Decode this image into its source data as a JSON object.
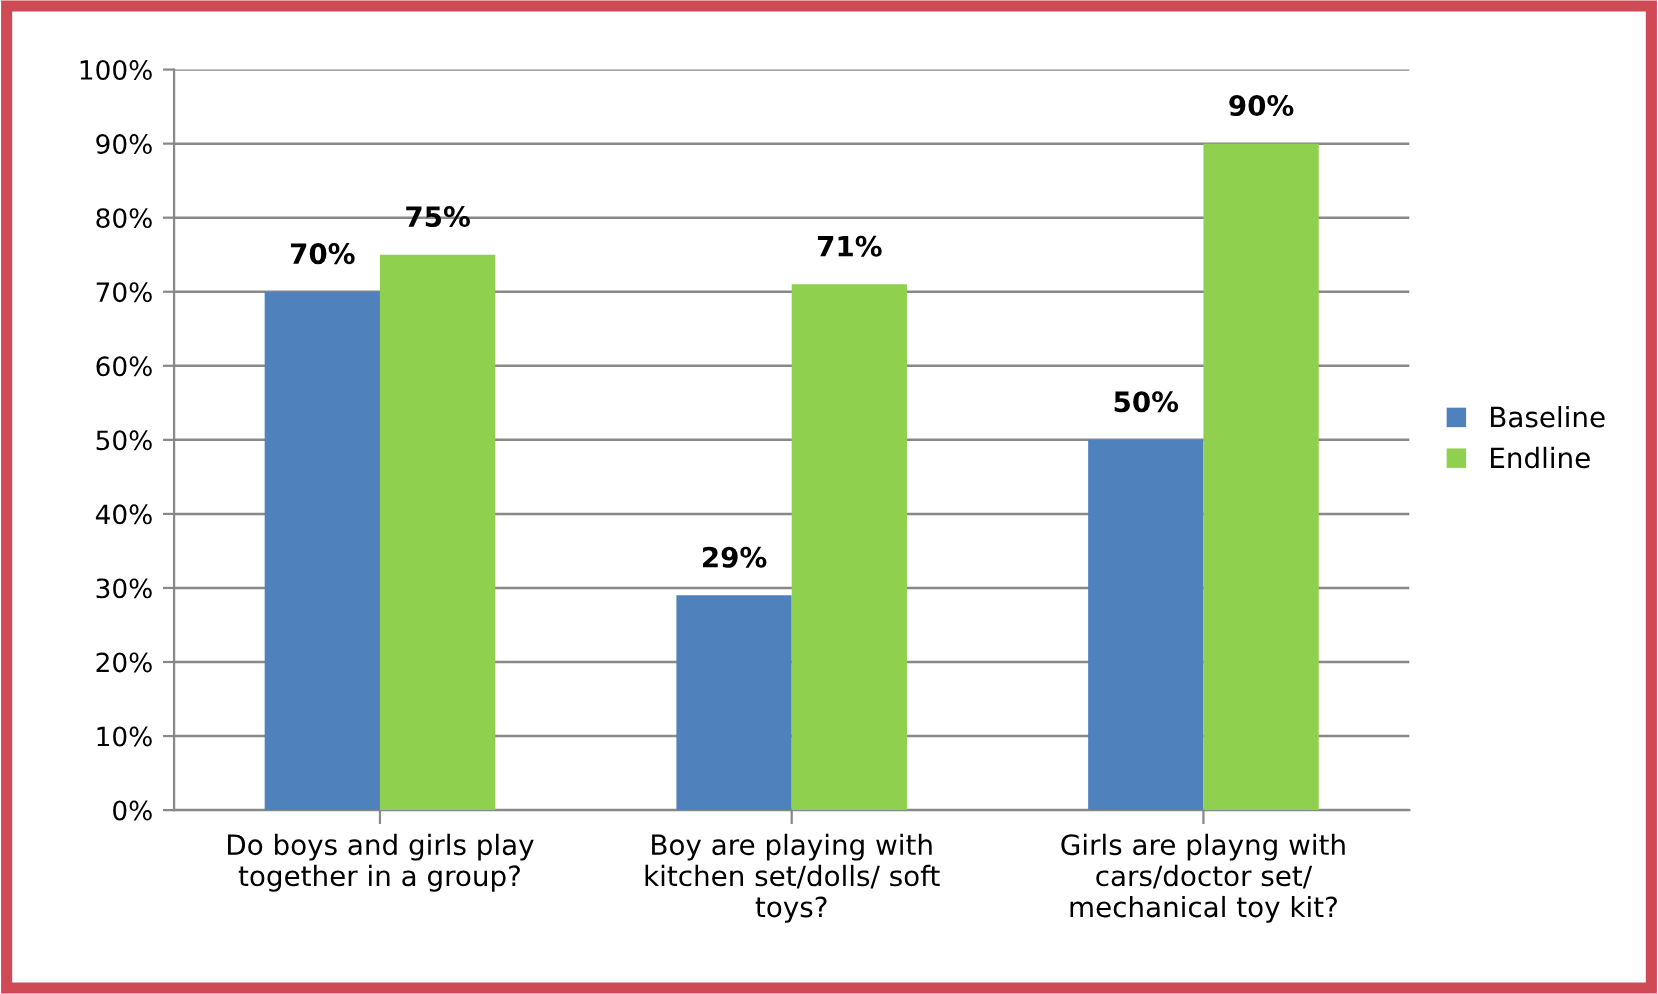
{
  "chart_data": {
    "type": "bar",
    "categories": [
      "Do boys and girls play\ntogether in a group?",
      "Boy are playing with\nkitchen set/dolls/ soft\ntoys?",
      "Girls are playng with\ncars/doctor set/\nmechanical toy kit?"
    ],
    "series": [
      {
        "name": "Baseline",
        "color": "#4f81bd",
        "values": [
          70,
          29,
          50
        ]
      },
      {
        "name": "Endline",
        "color": "#8fd14f",
        "values": [
          75,
          71,
          90
        ]
      }
    ],
    "ylim": [
      0,
      100
    ],
    "yticks": [
      {
        "value": 0,
        "label": "0%"
      },
      {
        "value": 10,
        "label": "10%"
      },
      {
        "value": 20,
        "label": "20%"
      },
      {
        "value": 30,
        "label": "30%"
      },
      {
        "value": 40,
        "label": "40%"
      },
      {
        "value": 50,
        "label": "50%"
      },
      {
        "value": 60,
        "label": "60%"
      },
      {
        "value": 70,
        "label": "70%"
      },
      {
        "value": 80,
        "label": "80%"
      },
      {
        "value": 90,
        "label": "90%"
      },
      {
        "value": 100,
        "label": "100%"
      }
    ],
    "value_labels": [
      [
        "70%",
        "29%",
        "50%"
      ],
      [
        "75%",
        "71%",
        "90%"
      ]
    ],
    "grid": "y",
    "legend": "right"
  }
}
